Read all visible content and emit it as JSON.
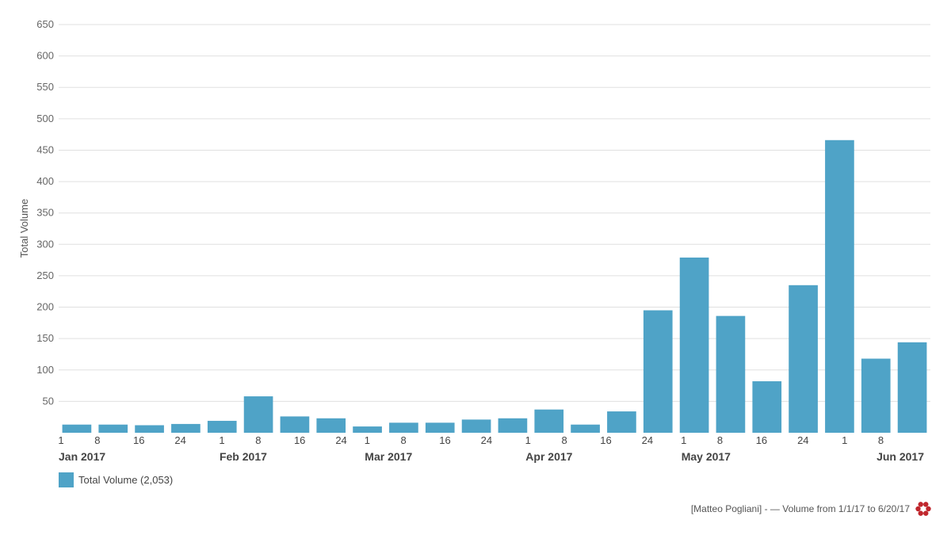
{
  "chart_data": {
    "type": "bar",
    "ylabel": "Total Volume",
    "ylim": [
      0,
      650
    ],
    "yticks": [
      50,
      100,
      150,
      200,
      250,
      300,
      350,
      400,
      450,
      500,
      550,
      600,
      650
    ],
    "grid": true,
    "categories": [
      "Jan 1",
      "Jan 8",
      "Jan 15",
      "Jan 22",
      "Jan 29",
      "Feb 5",
      "Feb 12",
      "Feb 19",
      "Feb 26",
      "Mar 5",
      "Mar 12",
      "Mar 19",
      "Mar 26",
      "Apr 2",
      "Apr 9",
      "Apr 16",
      "Apr 23",
      "Apr 30",
      "May 7",
      "May 14",
      "May 21",
      "May 28",
      "Jun 4",
      "Jun 11"
    ],
    "series": [
      {
        "name": "Total Volume",
        "color": "#4fa3c7",
        "values": [
          13,
          13,
          12,
          14,
          19,
          58,
          26,
          23,
          10,
          16,
          16,
          21,
          23,
          37,
          13,
          34,
          195,
          279,
          186,
          82,
          235,
          466,
          118,
          144
        ]
      }
    ],
    "x_ticks": [
      "1",
      "8",
      "16",
      "24",
      "1",
      "8",
      "16",
      "24",
      "1",
      "8",
      "16",
      "24",
      "1",
      "8",
      "16",
      "24",
      "1",
      "8",
      "16",
      "24",
      "1",
      "8"
    ],
    "month_labels": [
      "Jan 2017",
      "Feb 2017",
      "Mar 2017",
      "Apr 2017",
      "May 2017",
      "Jun 2017"
    ],
    "legend_placement": "bottom-left"
  },
  "legend": {
    "label": "Total Volume (2,053)",
    "color": "#4fa3c7"
  },
  "footer": {
    "text": "[Matteo Pogliani] - — Volume from 1/1/17 to 6/20/17",
    "logo_icon": "flower-logo-icon",
    "logo_color": "#c0272d"
  }
}
